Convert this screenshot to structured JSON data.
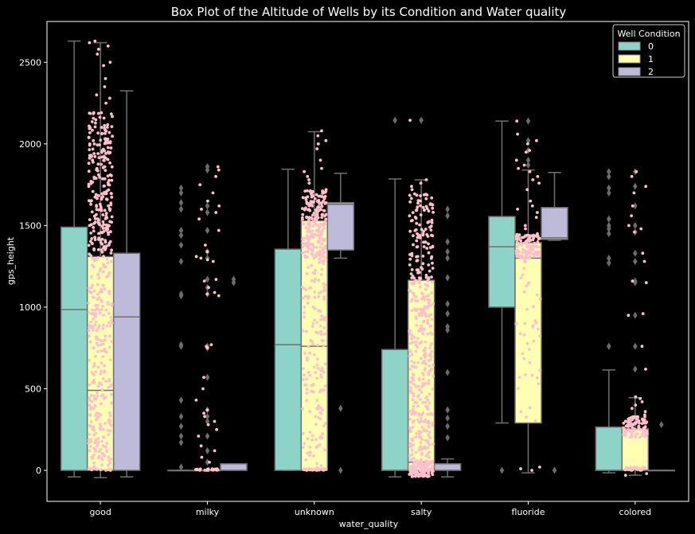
{
  "chart_data": {
    "type": "box",
    "title": "Box Plot of the Altitude of Wells by its Condition and Water quality",
    "xlabel": "water_quality",
    "ylabel": "gps_height",
    "categories": [
      "good",
      "milky",
      "unknown",
      "salty",
      "fluoride",
      "colored"
    ],
    "ylim": [
      -190,
      2750
    ],
    "yticks": [
      0,
      500,
      1000,
      1500,
      2000,
      2500
    ],
    "legend": {
      "title": "Well Condition",
      "placement": "top-right",
      "entries": [
        "0",
        "1",
        "2"
      ]
    },
    "colors": {
      "background": "#000000",
      "axes": "#ffffff",
      "whisker": "#707070",
      "strip": "#ffc0cb",
      "series": [
        "#8dd3c7",
        "#ffffb3",
        "#bebada"
      ]
    },
    "series": [
      {
        "name": "0",
        "boxes": [
          {
            "category": "good",
            "whislo": -40,
            "q1": 0,
            "med": 985,
            "q3": 1490,
            "whishi": 2630,
            "fliers": []
          },
          {
            "category": "milky",
            "whislo": 0,
            "q1": 0,
            "med": 0,
            "q3": 0,
            "whishi": 0,
            "fliers": [
              1730,
              1700,
              1640,
              1600,
              1470,
              1440,
              1380,
              1280,
              1080,
              1070,
              770,
              760,
              430,
              330,
              270,
              210,
              170,
              20
            ]
          },
          {
            "category": "unknown",
            "whislo": 0,
            "q1": 0,
            "med": 770,
            "q3": 1355,
            "whishi": 1845,
            "fliers": []
          },
          {
            "category": "salty",
            "whislo": -40,
            "q1": 0,
            "med": 0,
            "q3": 740,
            "whishi": 1785,
            "fliers": [
              2145
            ]
          },
          {
            "category": "fluoride",
            "whislo": 290,
            "q1": 1000,
            "med": 1370,
            "q3": 1555,
            "whishi": 2140,
            "fliers": [
              0
            ]
          },
          {
            "category": "colored",
            "whislo": -15,
            "q1": 0,
            "med": 0,
            "q3": 265,
            "whishi": 615,
            "fliers": [
              1830,
              1800,
              1730,
              1700,
              1540,
              1500,
              1480,
              1450,
              1300,
              1270,
              760
            ]
          }
        ]
      },
      {
        "name": "1",
        "boxes": [
          {
            "category": "good",
            "whislo": -45,
            "q1": 0,
            "med": 490,
            "q3": 1310,
            "whishi": 2620,
            "fliers": []
          },
          {
            "category": "milky",
            "whislo": 0,
            "q1": 0,
            "med": 0,
            "q3": 0,
            "whishi": 0,
            "fliers": [
              1860,
              1840,
              1620,
              1580,
              1470,
              1340,
              1300,
              1170,
              1120,
              1080,
              760,
              750,
              570,
              370,
              330,
              300,
              210,
              120,
              50
            ]
          },
          {
            "category": "unknown",
            "whislo": 0,
            "q1": 0,
            "med": 760,
            "q3": 1530,
            "whishi": 2075,
            "fliers": []
          },
          {
            "category": "salty",
            "whislo": -30,
            "q1": 0,
            "med": 50,
            "q3": 1165,
            "whishi": 1780,
            "fliers": [
              2145
            ]
          },
          {
            "category": "fluoride",
            "whislo": -15,
            "q1": 290,
            "med": 1300,
            "q3": 1395,
            "whishi": 1840,
            "fliers": [
              2140,
              2020,
              1960,
              1900,
              1870
            ]
          },
          {
            "category": "colored",
            "whislo": -30,
            "q1": 0,
            "med": 0,
            "q3": 255,
            "whishi": 445,
            "fliers": [
              1830,
              1740,
              1620,
              1500,
              1460,
              1330,
              1280,
              1160,
              1150,
              950,
              760,
              620
            ]
          }
        ]
      },
      {
        "name": "2",
        "boxes": [
          {
            "category": "good",
            "whislo": -40,
            "q1": 0,
            "med": 940,
            "q3": 1330,
            "whishi": 2325,
            "fliers": []
          },
          {
            "category": "milky",
            "whislo": 0,
            "q1": 0,
            "med": 0,
            "q3": 40,
            "whishi": 40,
            "fliers": [
              1170,
              1150
            ]
          },
          {
            "category": "unknown",
            "whislo": 1300,
            "q1": 1350,
            "med": 1630,
            "q3": 1640,
            "whishi": 1820,
            "fliers": [
              380,
              0
            ]
          },
          {
            "category": "salty",
            "whislo": -40,
            "q1": 0,
            "med": 0,
            "q3": 40,
            "whishi": 70,
            "fliers": [
              1600,
              1560,
              1400,
              1340,
              1300,
              1180,
              1020,
              960,
              880,
              860,
              600,
              370,
              320,
              270,
              200
            ]
          },
          {
            "category": "fluoride",
            "whislo": 1410,
            "q1": 1415,
            "med": 1425,
            "q3": 1610,
            "whishi": 1825,
            "fliers": [
              0
            ]
          },
          {
            "category": "colored",
            "whislo": 0,
            "q1": 0,
            "med": 0,
            "q3": 0,
            "whishi": 0,
            "fliers": [
              280
            ]
          }
        ]
      }
    ],
    "strip_points": [
      {
        "category": "good",
        "ranges": [
          [
            0,
            2200,
            520
          ]
        ],
        "extra": [
          2630,
          2620,
          2600,
          2580,
          2550,
          2500,
          2480,
          2400,
          2350,
          2300,
          2280,
          2250
        ]
      },
      {
        "category": "milky",
        "ranges": [
          [
            0,
            10,
            25
          ]
        ],
        "extra": [
          1860,
          1840,
          1800,
          1750,
          1700,
          1650,
          1620,
          1600,
          1580,
          1540,
          1470,
          1380,
          1340,
          1310,
          1300,
          1290,
          1280,
          1170,
          1160,
          1120,
          1090,
          1080,
          1070,
          770,
          760,
          750,
          570,
          500,
          430,
          370,
          350,
          330,
          300,
          280,
          250,
          210,
          150,
          120,
          80,
          50
        ]
      },
      {
        "category": "unknown",
        "ranges": [
          [
            1300,
            1720,
            220
          ],
          [
            0,
            1300,
            160
          ],
          [
            0,
            10,
            30
          ]
        ],
        "extra": [
          2080,
          2050,
          2020,
          2000,
          1970,
          1900,
          1850,
          1830,
          1800,
          1780,
          1760
        ]
      },
      {
        "category": "salty",
        "ranges": [
          [
            0,
            1700,
            420
          ],
          [
            -40,
            60,
            120
          ]
        ],
        "extra": [
          2145,
          1780,
          1760,
          1740,
          1720
        ]
      },
      {
        "category": "fluoride",
        "ranges": [
          [
            1300,
            1450,
            110
          ],
          [
            290,
            1300,
            40
          ]
        ],
        "extra": [
          2140,
          2060,
          2020,
          2000,
          1960,
          1950,
          1900,
          1870,
          1850,
          1830,
          1800,
          1780,
          1760,
          1720,
          1650,
          1620,
          1600,
          1580,
          1550,
          1500,
          1480,
          1450,
          0,
          10,
          20
        ]
      },
      {
        "category": "colored",
        "ranges": [
          [
            200,
            330,
            90
          ],
          [
            0,
            20,
            30
          ]
        ],
        "extra": [
          1830,
          1800,
          1740,
          1700,
          1620,
          1560,
          1500,
          1480,
          1460,
          1330,
          1280,
          1160,
          1150,
          960,
          950,
          760,
          620,
          450,
          440,
          420,
          400,
          380,
          360,
          340,
          -20,
          -30
        ]
      }
    ]
  }
}
